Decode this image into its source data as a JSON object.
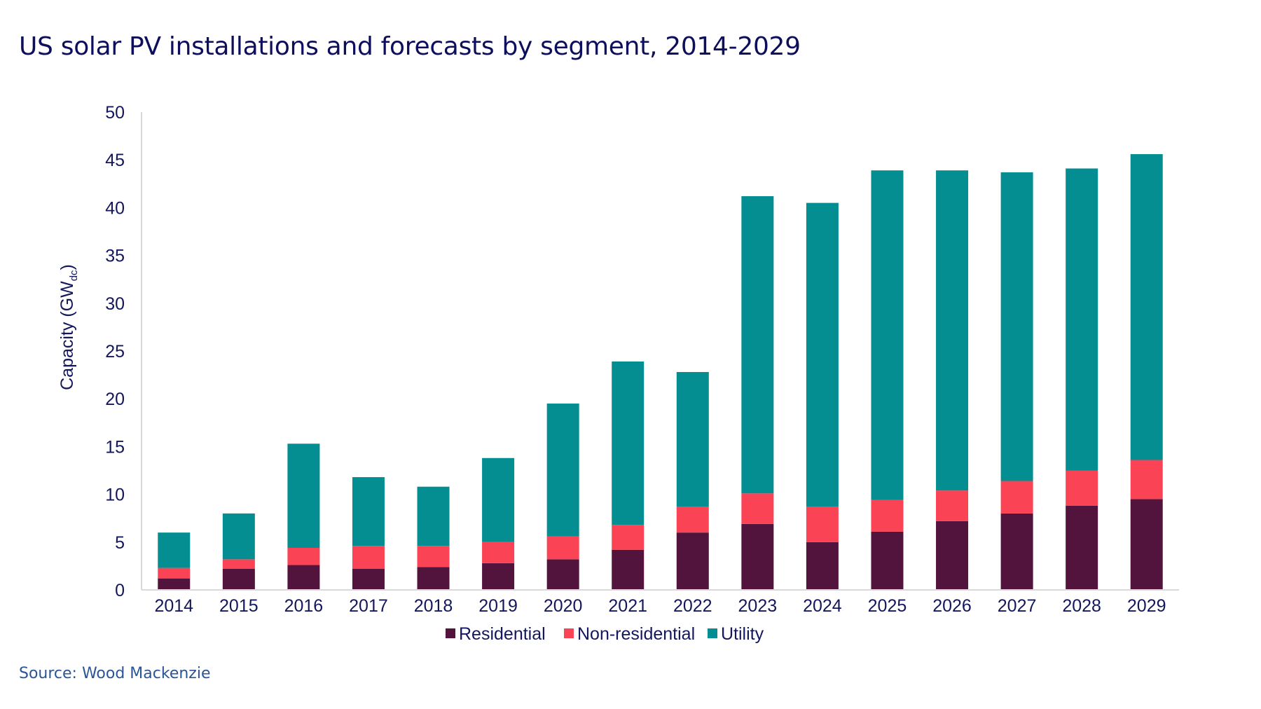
{
  "title": "US solar PV installations and forecasts by segment, 2014-2029",
  "source": "Source: Wood Mackenzie",
  "chart_data": {
    "type": "bar",
    "stacked": true,
    "title": "US solar PV installations and forecasts by segment, 2014-2029",
    "xlabel": "",
    "ylabel": "Capacity (GW",
    "ylabel_subscript": "dc",
    "ylabel_suffix": ")",
    "ylim": [
      0,
      50
    ],
    "yticks": [
      0,
      5,
      10,
      15,
      20,
      25,
      30,
      35,
      40,
      45,
      50
    ],
    "grid": false,
    "legend_position": "bottom",
    "categories": [
      "2014",
      "2015",
      "2016",
      "2017",
      "2018",
      "2019",
      "2020",
      "2021",
      "2022",
      "2023",
      "2024",
      "2025",
      "2026",
      "2027",
      "2028",
      "2029"
    ],
    "series": [
      {
        "name": "Residential",
        "color": "#52143C",
        "values": [
          1.2,
          2.2,
          2.6,
          2.2,
          2.4,
          2.8,
          3.2,
          4.2,
          6.0,
          6.9,
          5.0,
          6.1,
          7.2,
          8.0,
          8.8,
          9.5
        ]
      },
      {
        "name": "Non-residential",
        "color": "#FA4354",
        "values": [
          1.1,
          1.0,
          1.8,
          2.4,
          2.2,
          2.2,
          2.4,
          2.6,
          2.7,
          3.2,
          3.7,
          3.3,
          3.2,
          3.4,
          3.7,
          4.1
        ]
      },
      {
        "name": "Utility",
        "color": "#058E92",
        "values": [
          3.7,
          4.8,
          10.9,
          7.2,
          6.2,
          8.8,
          13.9,
          17.1,
          14.1,
          31.1,
          31.8,
          34.5,
          33.5,
          32.3,
          31.6,
          32.0
        ]
      }
    ]
  }
}
